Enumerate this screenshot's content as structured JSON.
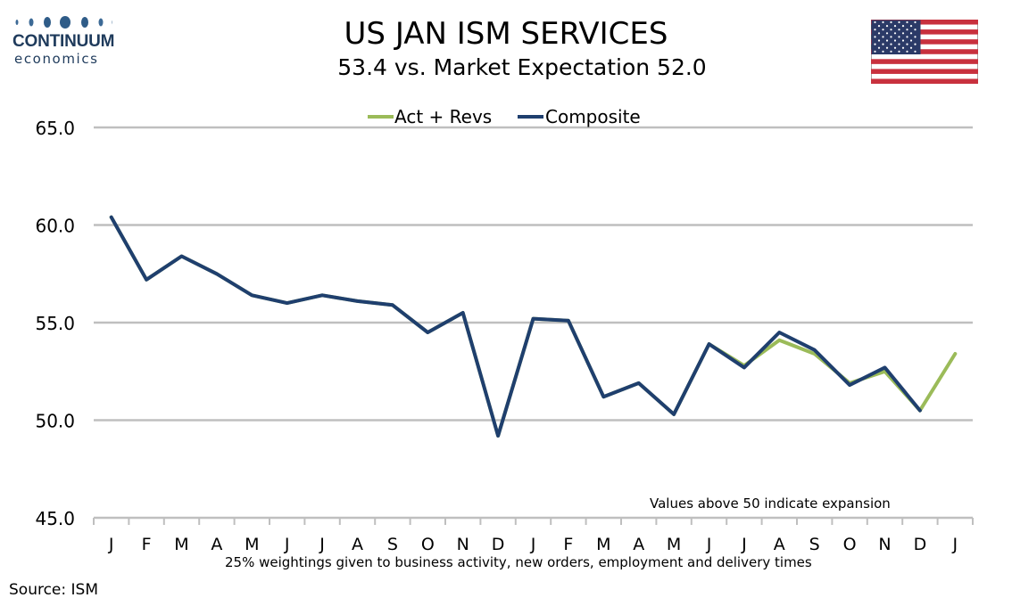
{
  "header": {
    "logo_brand": "CONTINUUM",
    "logo_sub": "economics",
    "title": "US JAN ISM SERVICES",
    "subtitle": "53.4 vs. Market Expectation 52.0"
  },
  "annotation": "Values above 50 indicate expansion",
  "footnote": "25% weightings given to business activity, new orders, employment and delivery times",
  "source": "Source: ISM",
  "colors": {
    "act_revs": "#9bbb59",
    "composite": "#1f3f6e",
    "grid": "#bfbfbf",
    "logo": "#1f3b5c"
  },
  "chart_data": {
    "type": "line",
    "title": "US JAN ISM SERVICES",
    "subtitle": "53.4 vs. Market Expectation 52.0",
    "categories": [
      "J",
      "F",
      "M",
      "A",
      "M",
      "J",
      "J",
      "A",
      "S",
      "O",
      "N",
      "D",
      "J",
      "F",
      "M",
      "A",
      "M",
      "J",
      "J",
      "A",
      "S",
      "O",
      "N",
      "D",
      "J"
    ],
    "ylim": [
      45,
      65
    ],
    "yticks": [
      "45.0",
      "50.0",
      "55.0",
      "60.0",
      "65.0"
    ],
    "grid": true,
    "legend_position": "top-center",
    "series": [
      {
        "name": "Act + Revs",
        "color": "#9bbb59",
        "values": [
          60.4,
          57.2,
          58.4,
          57.5,
          56.4,
          56.0,
          56.4,
          56.1,
          55.9,
          54.5,
          55.5,
          49.2,
          55.2,
          55.1,
          51.2,
          51.9,
          50.3,
          53.9,
          52.8,
          54.1,
          53.4,
          51.9,
          52.5,
          50.5,
          53.4
        ]
      },
      {
        "name": "Composite",
        "color": "#1f3f6e",
        "values": [
          60.4,
          57.2,
          58.4,
          57.5,
          56.4,
          56.0,
          56.4,
          56.1,
          55.9,
          54.5,
          55.5,
          49.2,
          55.2,
          55.1,
          51.2,
          51.9,
          50.3,
          53.9,
          52.7,
          54.5,
          53.6,
          51.8,
          52.7,
          50.5,
          null
        ]
      }
    ]
  }
}
